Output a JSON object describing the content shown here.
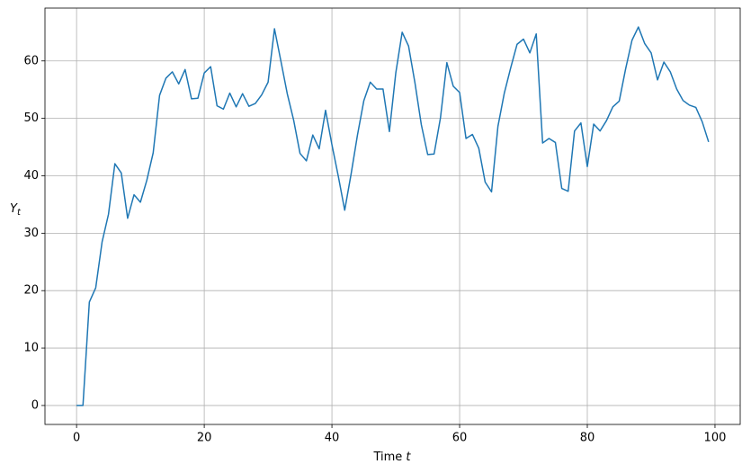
{
  "chart_data": {
    "type": "line",
    "xlabel": {
      "text": "Time",
      "var": "t"
    },
    "ylabel": {
      "base": "Y",
      "sub": "t"
    },
    "x": [
      0,
      1,
      2,
      3,
      4,
      5,
      6,
      7,
      8,
      9,
      10,
      11,
      12,
      13,
      14,
      15,
      16,
      17,
      18,
      19,
      20,
      21,
      22,
      23,
      24,
      25,
      26,
      27,
      28,
      29,
      30,
      31,
      32,
      33,
      34,
      35,
      36,
      37,
      38,
      39,
      40,
      41,
      42,
      43,
      44,
      45,
      46,
      47,
      48,
      49,
      50,
      51,
      52,
      53,
      54,
      55,
      56,
      57,
      58,
      59,
      60,
      61,
      62,
      63,
      64,
      65,
      66,
      67,
      68,
      69,
      70,
      71,
      72,
      73,
      74,
      75,
      76,
      77,
      78,
      79,
      80,
      81,
      82,
      83,
      84,
      85,
      86,
      87,
      88,
      89,
      90,
      91,
      92,
      93,
      94,
      95,
      96,
      97,
      98,
      99
    ],
    "values": [
      0,
      0,
      18,
      20.5,
      28.5,
      33.3,
      42.1,
      40.5,
      32.6,
      36.7,
      35.4,
      39.2,
      44,
      54,
      57,
      58.1,
      56,
      58.5,
      53.4,
      53.5,
      57.9,
      59,
      52.2,
      51.6,
      54.4,
      52,
      54.3,
      52.1,
      52.6,
      54.1,
      56.3,
      65.6,
      60,
      54.3,
      49.7,
      43.9,
      42.6,
      47.1,
      44.7,
      51.4,
      45.4,
      39.9,
      34,
      40.3,
      47.1,
      53.1,
      56.3,
      55.1,
      55.1,
      47.7,
      57.9,
      65,
      62.6,
      56.2,
      48.9,
      43.7,
      43.8,
      50.1,
      59.7,
      55.6,
      54.5,
      46.5,
      47.2,
      44.8,
      38.9,
      37.2,
      48.6,
      54.4,
      58.8,
      62.9,
      63.8,
      61.4,
      64.7,
      45.7,
      46.5,
      45.8,
      37.8,
      37.3,
      47.8,
      49.2,
      41.6,
      49,
      47.8,
      49.6,
      52,
      53,
      58.6,
      63.6,
      65.9,
      63,
      61.4,
      56.7,
      59.8,
      58.1,
      55.1,
      53.1,
      52.3,
      51.9,
      49.4,
      45.9
    ],
    "color": "#1f77b4",
    "xlim": [
      -4.95,
      103.95
    ],
    "xticks": [
      0,
      20,
      40,
      60,
      80,
      100
    ],
    "ylim": [
      -3.3,
      69.2
    ],
    "yticks": [
      0,
      10,
      20,
      30,
      40,
      50,
      60
    ],
    "grid": true
  }
}
